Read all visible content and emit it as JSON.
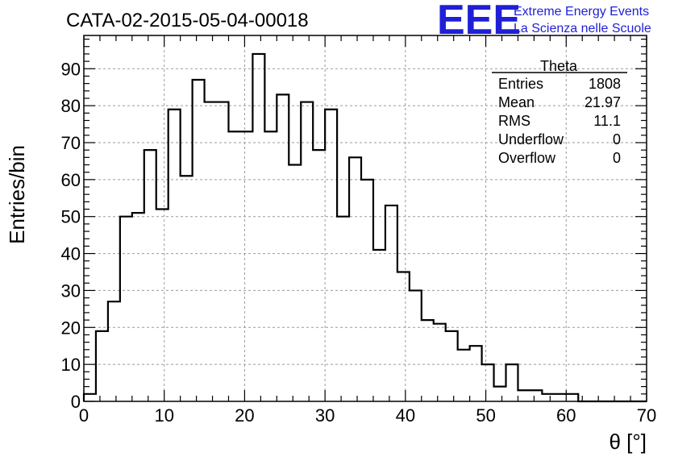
{
  "logo": {
    "mark": "EEE",
    "line1": "Extreme Energy Events",
    "line2": "La Scienza nelle Scuole",
    "color": "#1f1fd6"
  },
  "chart_data": {
    "type": "bar",
    "title": "CATA-02-2015-05-04-00018",
    "xlabel": "θ [°]",
    "ylabel": "Entries/bin",
    "xlim": [
      0,
      70
    ],
    "ylim": [
      0,
      99
    ],
    "grid": true,
    "bin_width": 1.5,
    "x_start": 0,
    "values": [
      2,
      19,
      27,
      50,
      51,
      68,
      52,
      79,
      61,
      87,
      81,
      81,
      73,
      73,
      94,
      73,
      83,
      64,
      81,
      68,
      79,
      50,
      66,
      60,
      41,
      53,
      35,
      30,
      22,
      21,
      19,
      14,
      15,
      10,
      4,
      10,
      3,
      3,
      2,
      2,
      2,
      0,
      0,
      0,
      0,
      0,
      0
    ],
    "x_ticks": [
      0,
      10,
      20,
      30,
      40,
      50,
      60,
      70
    ],
    "y_ticks": [
      0,
      10,
      20,
      30,
      40,
      50,
      60,
      70,
      80,
      90
    ],
    "stats": {
      "name": "Theta",
      "rows": [
        {
          "label": "Entries",
          "value": "1808"
        },
        {
          "label": "Mean",
          "value": "21.97"
        },
        {
          "label": "RMS",
          "value": "11.1"
        },
        {
          "label": "Underflow",
          "value": "0"
        },
        {
          "label": "Overflow",
          "value": "0"
        }
      ]
    }
  }
}
